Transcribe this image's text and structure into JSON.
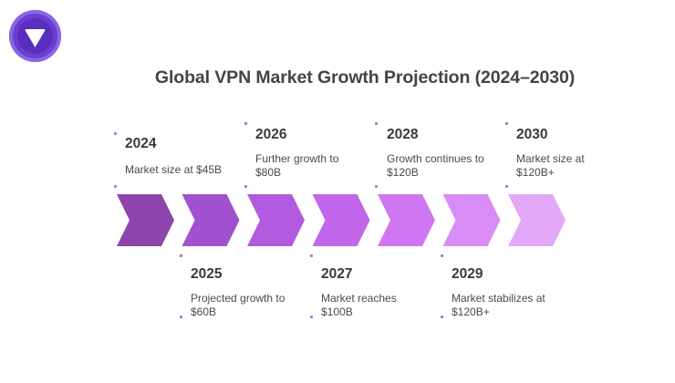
{
  "title": "Global VPN Market Growth Projection (2024–2030)",
  "logo": {
    "icon": "vpn-shield-logo-icon",
    "color": "#6a3fd0"
  },
  "milestones": [
    {
      "year": "2024",
      "desc": "Market size at $45B",
      "color": "#8e44ad"
    },
    {
      "year": "2025",
      "desc": "Projected growth to $60B",
      "color": "#a150cf"
    },
    {
      "year": "2026",
      "desc": "Further growth to $80B",
      "color": "#b25ae0"
    },
    {
      "year": "2027",
      "desc": "Market reaches $100B",
      "color": "#c266ec"
    },
    {
      "year": "2028",
      "desc": "Growth continues to $120B",
      "color": "#cf77f2"
    },
    {
      "year": "2029",
      "desc": "Market stabilizes at $120B+",
      "color": "#d98cf5"
    },
    {
      "year": "2030",
      "desc": "Market size at $120B+",
      "color": "#e4a8f8"
    }
  ]
}
